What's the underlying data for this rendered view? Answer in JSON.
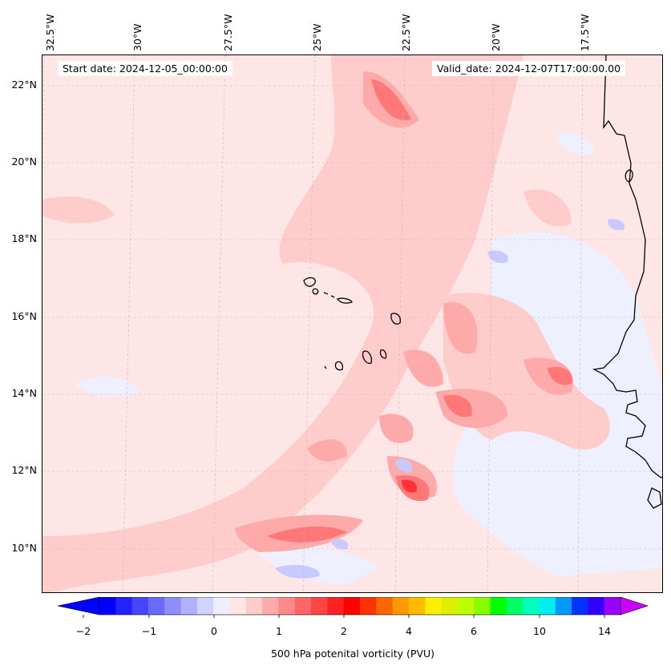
{
  "map": {
    "start_date": "Start date: 2024-12-05_00:00:00",
    "valid_date": "Valid_date: 2024-12-07T17:00:00.00",
    "lon_labels": [
      "32.5°W",
      "30°W",
      "27.5°W",
      "25°W",
      "22.5°W",
      "20°W",
      "17.5°W"
    ],
    "lat_labels": [
      "22°N",
      "20°N",
      "18°N",
      "16°N",
      "14°N",
      "12°N",
      "10°N"
    ],
    "colors": {
      "background": "#ffe6e6",
      "light_blue": "#eef0ff",
      "mid_blue": "#c8caff",
      "pink_light": "#ffcccc",
      "pink_mid": "#ffaaaa",
      "red_mid": "#ff7777",
      "red_strong": "#ff3333",
      "coast": "#000000"
    }
  },
  "colorbar": {
    "label": "500 hPa potenital vorticity (PVU)",
    "ticks": [
      "−2",
      "−1",
      "0",
      "1",
      "2",
      "4",
      "6",
      "10",
      "14"
    ],
    "colors": [
      "#0000ff",
      "#2222ff",
      "#4646ff",
      "#6a6aff",
      "#8e8eff",
      "#b0b0ff",
      "#d2d2ff",
      "#eeeeff",
      "#ffe6e6",
      "#ffcccc",
      "#ffaaaa",
      "#ff8888",
      "#ff6666",
      "#ff4444",
      "#ff2222",
      "#ff0000",
      "#ff3300",
      "#ff6600",
      "#ff9900",
      "#ffbb00",
      "#ffee00",
      "#ddee00",
      "#bbff00",
      "#88ff00",
      "#00ff00",
      "#00ff66",
      "#00ffbb",
      "#00eeee",
      "#0099ff",
      "#0033ff",
      "#3300ff",
      "#9900ff"
    ],
    "extend_min_color": "#0000ff",
    "extend_max_color": "#cc00ff"
  }
}
